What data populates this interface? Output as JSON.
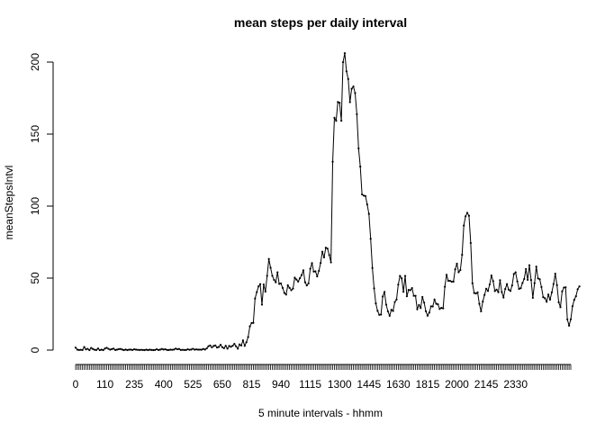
{
  "chart_data": {
    "type": "line",
    "title": "mean steps per daily interval",
    "xlabel": "5 minute intervals - hhmm",
    "ylabel": "meanStepsIntvl",
    "x_tick_labels": [
      "0",
      "110",
      "235",
      "400",
      "525",
      "650",
      "815",
      "940",
      "1115",
      "1300",
      "1445",
      "1630",
      "1815",
      "2000",
      "2145",
      "2330"
    ],
    "y_ticks": [
      0,
      50,
      100,
      150,
      200
    ],
    "ylim": [
      0,
      206
    ],
    "x_points": 288,
    "x_label_every": 17,
    "grid": false,
    "legend": "none",
    "line_color": "#000000",
    "series": [
      {
        "values": [
          1.7,
          0.3,
          0.1,
          0.2,
          0.1,
          2.1,
          0.5,
          0.9,
          0.0,
          1.5,
          0.8,
          0.2,
          0.1,
          1.1,
          0.0,
          0.3,
          0.0,
          1.1,
          1.6,
          0.9,
          0.3,
          0.7,
          1.0,
          0.1,
          0.3,
          0.7,
          0.8,
          0.4,
          0.0,
          0.4,
          0.0,
          0.3,
          0.3,
          0.1,
          0.6,
          0.3,
          0.2,
          0.1,
          0.2,
          0.1,
          0.0,
          0.3,
          0.0,
          0.3,
          0.1,
          0.0,
          0.1,
          0.6,
          0.1,
          0.3,
          0.8,
          0.4,
          0.6,
          0.1,
          0.1,
          0.3,
          0.2,
          0.4,
          1.0,
          0.6,
          0.8,
          0.1,
          0.2,
          0.1,
          0.1,
          0.6,
          0.2,
          0.4,
          0.9,
          0.3,
          0.5,
          0.3,
          0.3,
          0.3,
          0.8,
          0.4,
          1.2,
          2.7,
          3.2,
          1.9,
          2.9,
          3.2,
          1.8,
          2.2,
          3.7,
          2.0,
          1.3,
          3.0,
          1.0,
          2.9,
          2.3,
          3.0,
          4.3,
          2.6,
          1.0,
          3.9,
          3.2,
          6.7,
          3.0,
          5.5,
          9.1,
          16.5,
          18.8,
          18.9,
          35.8,
          40.2,
          44.2,
          45.8,
          31.6,
          45.6,
          40.6,
          51.6,
          63.3,
          57.2,
          51.6,
          48.8,
          47.1,
          54.0,
          46.0,
          46.3,
          43.2,
          39.7,
          38.6,
          45.0,
          43.2,
          41.6,
          42.7,
          50.3,
          49.0,
          47.6,
          49.9,
          52.1,
          55.4,
          47.1,
          44.9,
          46.3,
          56.5,
          60.4,
          54.5,
          54.7,
          51.2,
          55.0,
          60.5,
          68.3,
          64.4,
          71.1,
          70.5,
          66.0,
          60.9,
          130.8,
          161.3,
          159.3,
          172.3,
          171.7,
          159.3,
          199.9,
          206.2,
          193.6,
          188.2,
          172.2,
          181.5,
          183.1,
          178.5,
          163.8,
          140.1,
          127.4,
          108.1,
          107.3,
          107.0,
          101.1,
          94.6,
          77.3,
          57.0,
          42.9,
          32.4,
          27.3,
          24.5,
          24.7,
          37.2,
          40.3,
          31.6,
          26.9,
          23.8,
          28.0,
          27.2,
          33.4,
          35.1,
          45.5,
          51.5,
          49.8,
          40.5,
          51.5,
          37.4,
          41.8,
          41.6,
          43.1,
          37.7,
          37.7,
          28.4,
          31.3,
          29.3,
          36.9,
          33.0,
          27.0,
          23.9,
          26.1,
          30.4,
          30.3,
          35.1,
          32.2,
          31.8,
          28.6,
          29.3,
          29.0,
          44.0,
          52.3,
          48.1,
          48.1,
          47.5,
          47.6,
          56.1,
          60.0,
          54.1,
          55.6,
          66.2,
          86.5,
          92.9,
          95.3,
          93.3,
          74.4,
          46.4,
          39.7,
          39.3,
          40.1,
          32.1,
          26.9,
          33.7,
          38.3,
          42.6,
          41.1,
          45.6,
          51.8,
          47.9,
          41.0,
          42.0,
          40.2,
          48.5,
          40.3,
          36.6,
          42.4,
          45.8,
          42.0,
          41.1,
          44.9,
          52.8,
          54.0,
          47.7,
          42.5,
          43.0,
          46.6,
          49.4,
          56.3,
          48.8,
          58.9,
          48.7,
          36.3,
          46.5,
          58.0,
          49.8,
          49.2,
          43.8,
          36.8,
          36.0,
          33.6,
          38.5,
          35.1,
          40.1,
          45.9,
          53.1,
          45.1,
          33.2,
          29.8,
          40.8,
          43.4,
          43.6,
          21.3,
          17.0,
          21.4,
          30.5,
          34.9,
          37.4,
          42.3,
          44.2
        ]
      }
    ]
  }
}
